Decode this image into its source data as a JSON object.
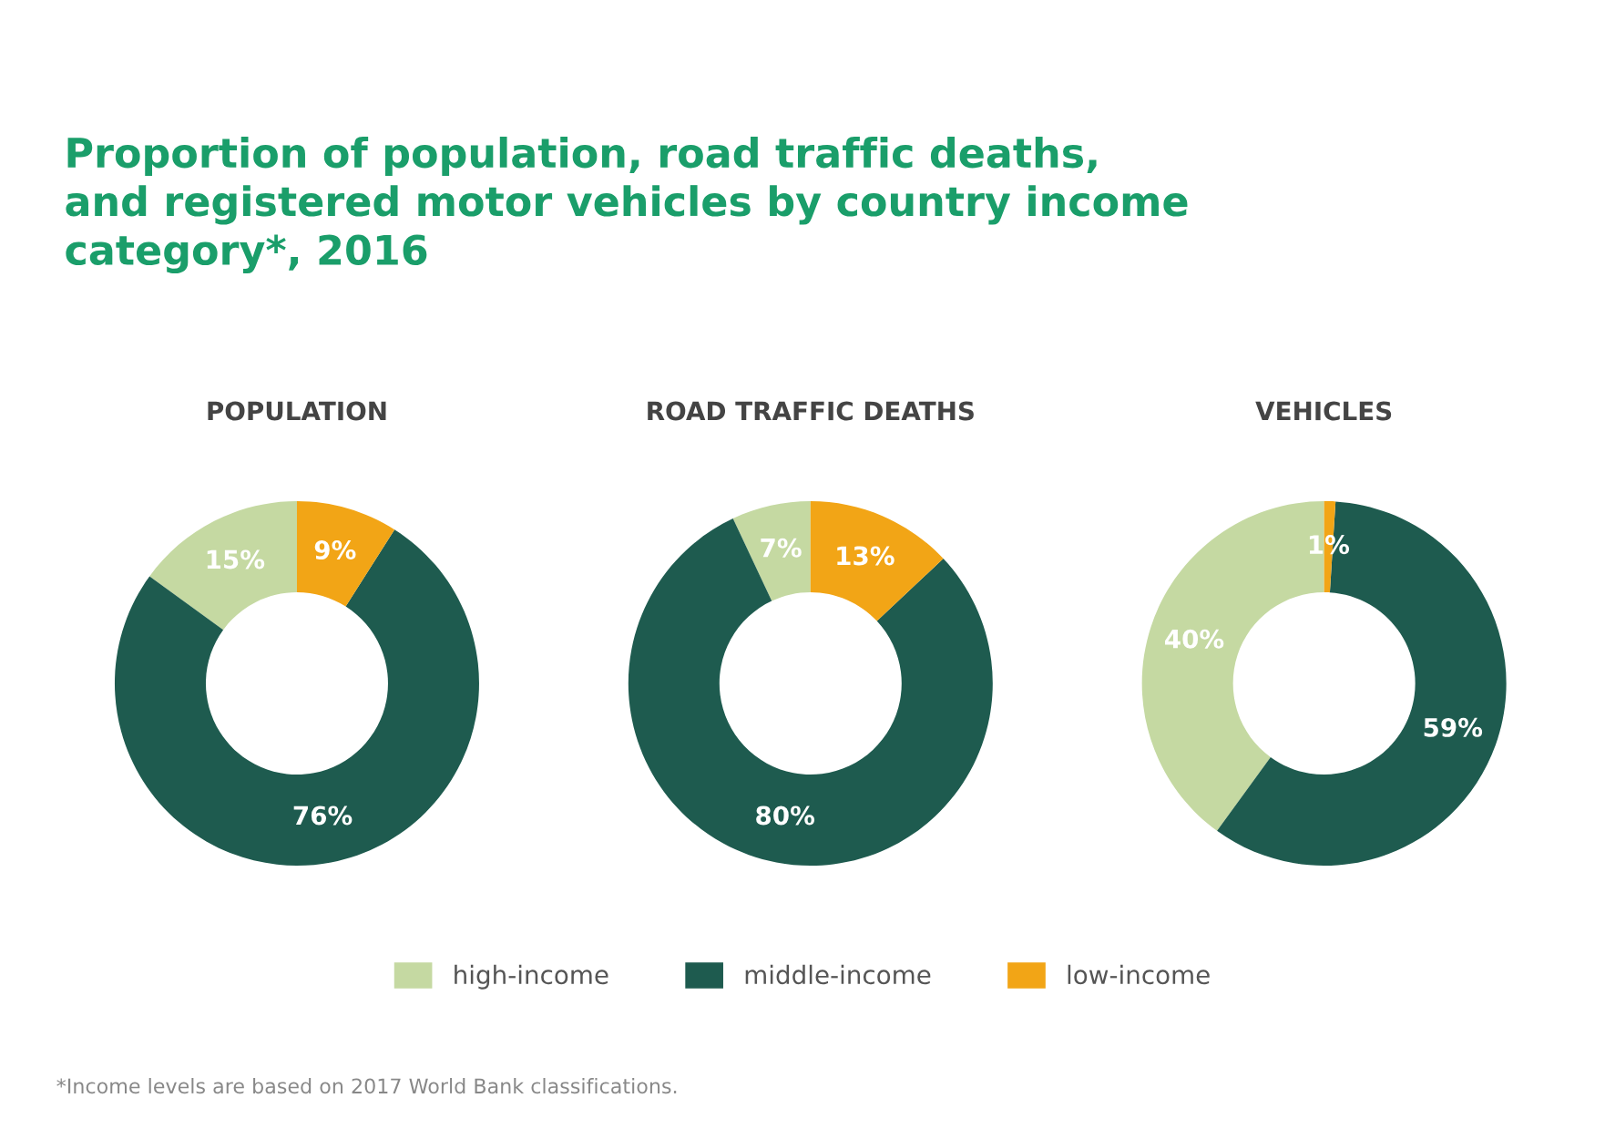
{
  "chart_data": [
    {
      "type": "donut",
      "title": "POPULATION",
      "categories": [
        "high-income",
        "middle-income",
        "low-income"
      ],
      "values": [
        15,
        76,
        9
      ],
      "value_labels": [
        "15%",
        "76%",
        "9%"
      ],
      "colors": [
        "#c5d9a2",
        "#1e5b4f",
        "#f2a516"
      ],
      "legend": "bottom",
      "annotations": [
        "Proportion of population, road traffic deaths,\nand registered motor vehicles by country income\ncategory*, 2016",
        "*Income levels are based on 2017 World Bank classifications."
      ]
    },
    {
      "type": "donut",
      "title": "ROAD TRAFFIC DEATHS",
      "categories": [
        null,
        null,
        null
      ],
      "values": [
        7,
        80,
        13
      ],
      "value_labels": [
        "7%",
        "80%",
        "13%"
      ],
      "colors": [
        "#c5d9a2",
        "#1e5b4f",
        "#f2a516"
      ]
    },
    {
      "type": "donut",
      "title": "VEHICLES",
      "categories": [
        null,
        null,
        null
      ],
      "values": [
        40,
        59,
        1
      ],
      "value_labels": [
        "40%",
        "59%",
        "1%"
      ],
      "colors": [
        "#c5d9a2",
        "#1e5b4f",
        "#f2a516"
      ]
    }
  ]
}
